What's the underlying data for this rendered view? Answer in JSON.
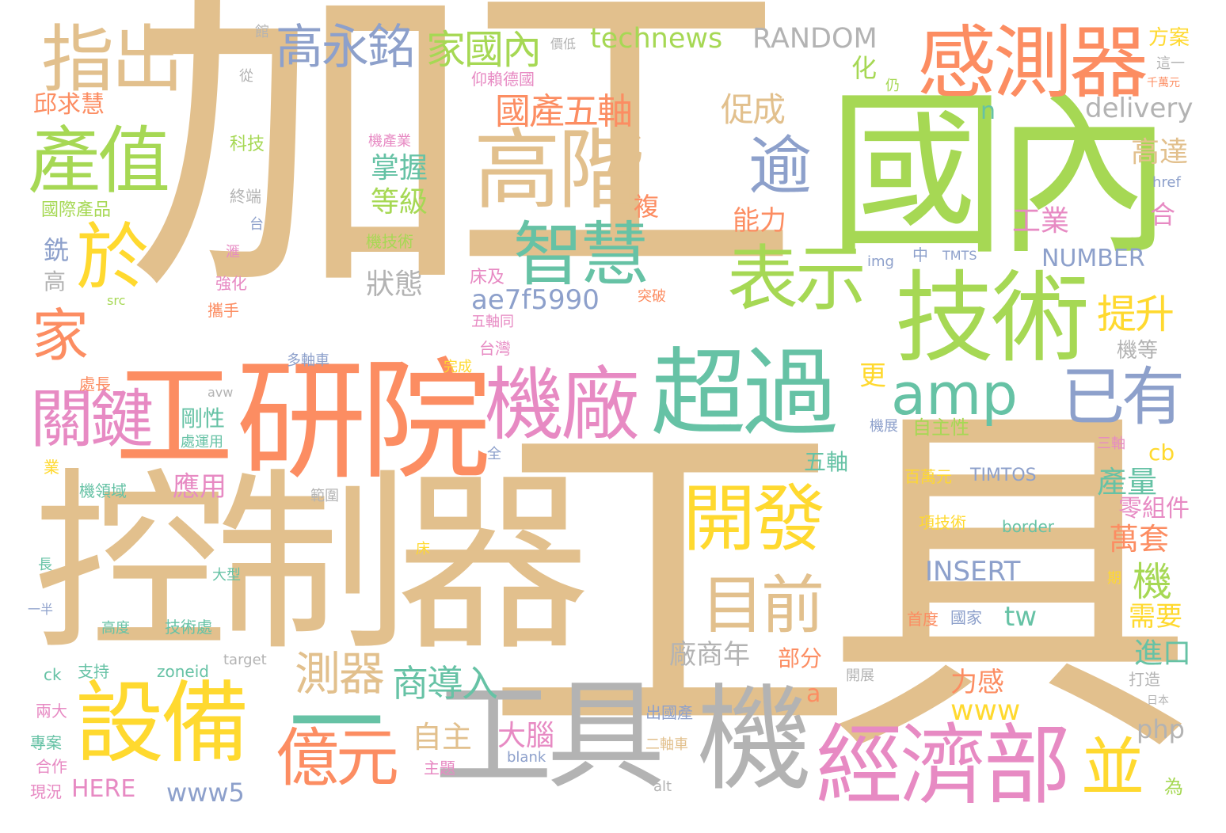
{
  "palette": {
    "tan": "#e2c08d",
    "green": "#a6d854",
    "orange": "#fc8d62",
    "teal": "#66c2a5",
    "yellow": "#ffd92f",
    "pink": "#e78ac3",
    "blue": "#8da0cb",
    "gray": "#b3b3b3"
  },
  "words": [
    {
      "text": "加工",
      "color": "tan"
    },
    {
      "text": "工具",
      "color": "tan"
    },
    {
      "text": "控制器",
      "color": "tan"
    },
    {
      "text": "國內",
      "color": "green"
    },
    {
      "text": "研院",
      "color": "orange"
    },
    {
      "text": "工",
      "color": "orange"
    },
    {
      "text": "超過",
      "color": "teal"
    },
    {
      "text": "機廠",
      "color": "pink"
    },
    {
      "text": "技術",
      "color": "green"
    },
    {
      "text": "高階",
      "color": "tan"
    },
    {
      "text": "感測器",
      "color": "orange"
    },
    {
      "text": "工具",
      "color": "gray"
    },
    {
      "text": "機",
      "color": "gray"
    },
    {
      "text": "經濟部",
      "color": "pink"
    },
    {
      "text": "設備",
      "color": "yellow"
    },
    {
      "text": "指出",
      "color": "tan"
    },
    {
      "text": "產值",
      "color": "green"
    },
    {
      "text": "智慧",
      "color": "teal"
    },
    {
      "text": "表示",
      "color": "green"
    },
    {
      "text": "開發",
      "color": "yellow"
    },
    {
      "text": "目前",
      "color": "tan"
    },
    {
      "text": "已有",
      "color": "blue"
    },
    {
      "text": "amp",
      "color": "teal"
    },
    {
      "text": "逾",
      "color": "blue"
    },
    {
      "text": "於",
      "color": "yellow"
    },
    {
      "text": "家",
      "color": "orange"
    },
    {
      "text": "關鍵",
      "color": "pink"
    },
    {
      "text": "億元",
      "color": "orange"
    },
    {
      "text": "並",
      "color": "yellow"
    },
    {
      "text": "一",
      "color": "teal"
    },
    {
      "text": "高永銘",
      "color": "blue"
    },
    {
      "text": "家國內",
      "color": "green"
    },
    {
      "text": "technews",
      "color": "green"
    },
    {
      "text": "RANDOM",
      "color": "gray"
    },
    {
      "text": "國產五軸",
      "color": "orange"
    },
    {
      "text": "促成",
      "color": "tan"
    },
    {
      "text": "測器",
      "color": "tan"
    },
    {
      "text": "商導入",
      "color": "teal"
    },
    {
      "text": "提升",
      "color": "yellow"
    },
    {
      "text": "delivery",
      "color": "gray"
    },
    {
      "text": "高達",
      "color": "tan"
    },
    {
      "text": "工業",
      "color": "pink"
    },
    {
      "text": "NUMBER",
      "color": "blue"
    },
    {
      "text": "ae7f5990",
      "color": "blue"
    },
    {
      "text": "能力",
      "color": "orange"
    },
    {
      "text": "產量",
      "color": "teal"
    },
    {
      "text": "萬套",
      "color": "orange"
    },
    {
      "text": "零組件",
      "color": "pink"
    },
    {
      "text": "機",
      "color": "green"
    },
    {
      "text": "需要",
      "color": "yellow"
    },
    {
      "text": "進口",
      "color": "teal"
    },
    {
      "text": "INSERT",
      "color": "blue"
    },
    {
      "text": "www",
      "color": "yellow"
    },
    {
      "text": "www5",
      "color": "blue"
    },
    {
      "text": "HERE",
      "color": "pink"
    },
    {
      "text": "大腦",
      "color": "pink"
    },
    {
      "text": "自主",
      "color": "tan"
    },
    {
      "text": "力感",
      "color": "orange"
    },
    {
      "text": "tw",
      "color": "teal"
    },
    {
      "text": "php",
      "color": "gray"
    },
    {
      "text": "cb",
      "color": "yellow"
    },
    {
      "text": "廠商年",
      "color": "gray"
    },
    {
      "text": "部分",
      "color": "orange"
    },
    {
      "text": "掌握",
      "color": "teal"
    },
    {
      "text": "等級",
      "color": "green"
    },
    {
      "text": "狀態",
      "color": "gray"
    },
    {
      "text": "邱求慧",
      "color": "orange"
    },
    {
      "text": "國際產品",
      "color": "green"
    },
    {
      "text": "應用",
      "color": "pink"
    },
    {
      "text": "剛性",
      "color": "teal"
    },
    {
      "text": "五軸",
      "color": "teal"
    },
    {
      "text": "自主性",
      "color": "green"
    },
    {
      "text": "百萬元",
      "color": "yellow"
    },
    {
      "text": "TIMTOS",
      "color": "blue"
    },
    {
      "text": "項技術",
      "color": "yellow"
    },
    {
      "text": "border",
      "color": "teal"
    },
    {
      "text": "首度",
      "color": "orange"
    },
    {
      "text": "國家",
      "color": "blue"
    },
    {
      "text": "更",
      "color": "yellow"
    },
    {
      "text": "a",
      "color": "orange"
    },
    {
      "text": "n",
      "color": "teal"
    },
    {
      "text": "方案",
      "color": "yellow"
    },
    {
      "text": "複",
      "color": "orange"
    },
    {
      "text": "合",
      "color": "pink"
    },
    {
      "text": "化",
      "color": "green"
    },
    {
      "text": "銑",
      "color": "blue"
    },
    {
      "text": "高",
      "color": "gray"
    },
    {
      "text": "床及",
      "color": "pink"
    },
    {
      "text": "科技",
      "color": "green"
    },
    {
      "text": "終端",
      "color": "gray"
    },
    {
      "text": "機產業",
      "color": "pink"
    },
    {
      "text": "機技術",
      "color": "green"
    },
    {
      "text": "仰賴德國",
      "color": "pink"
    },
    {
      "text": "技術處",
      "color": "teal"
    },
    {
      "text": "支持",
      "color": "teal"
    },
    {
      "text": "zoneid",
      "color": "teal"
    },
    {
      "text": "target",
      "color": "gray"
    },
    {
      "text": "ck",
      "color": "teal"
    },
    {
      "text": "兩大",
      "color": "pink"
    },
    {
      "text": "專案",
      "color": "teal"
    },
    {
      "text": "合作",
      "color": "pink"
    },
    {
      "text": "現況",
      "color": "pink"
    },
    {
      "text": "大型",
      "color": "teal"
    },
    {
      "text": "高度",
      "color": "teal"
    },
    {
      "text": "範圍",
      "color": "gray"
    },
    {
      "text": "機領域",
      "color": "teal"
    },
    {
      "text": "出國產",
      "color": "blue"
    },
    {
      "text": "主題",
      "color": "pink"
    },
    {
      "text": "二軸車",
      "color": "tan"
    },
    {
      "text": "blank",
      "color": "blue"
    },
    {
      "text": "alt",
      "color": "gray"
    },
    {
      "text": "台灣",
      "color": "pink"
    },
    {
      "text": "五軸同",
      "color": "pink"
    },
    {
      "text": "突破",
      "color": "orange"
    },
    {
      "text": "完成",
      "color": "yellow"
    },
    {
      "text": "多軸車",
      "color": "blue"
    },
    {
      "text": "處長",
      "color": "orange"
    },
    {
      "text": "強化",
      "color": "pink"
    },
    {
      "text": "攜手",
      "color": "orange"
    },
    {
      "text": "機等",
      "color": "gray"
    },
    {
      "text": "為",
      "color": "green"
    },
    {
      "text": "打造",
      "color": "gray"
    },
    {
      "text": "日本",
      "color": "gray"
    },
    {
      "text": "三軸",
      "color": "pink"
    },
    {
      "text": "機展",
      "color": "blue"
    },
    {
      "text": "開展",
      "color": "gray"
    },
    {
      "text": "中",
      "color": "blue"
    },
    {
      "text": "TMTS",
      "color": "blue"
    },
    {
      "text": "img",
      "color": "blue"
    },
    {
      "text": "href",
      "color": "blue"
    },
    {
      "text": "src",
      "color": "green"
    },
    {
      "text": "avw",
      "color": "gray"
    },
    {
      "text": "全",
      "color": "blue"
    },
    {
      "text": "長",
      "color": "teal"
    },
    {
      "text": "一半",
      "color": "blue"
    },
    {
      "text": "館",
      "color": "gray"
    },
    {
      "text": "從",
      "color": "gray"
    },
    {
      "text": "仍",
      "color": "green"
    },
    {
      "text": "這一",
      "color": "gray"
    },
    {
      "text": "千萬元",
      "color": "orange"
    },
    {
      "text": "價低",
      "color": "gray"
    },
    {
      "text": "業",
      "color": "yellow"
    },
    {
      "text": "台",
      "color": "blue"
    },
    {
      "text": "滙",
      "color": "pink"
    },
    {
      "text": "處運用",
      "color": "teal"
    },
    {
      "text": "期",
      "color": "yellow"
    },
    {
      "text": "床",
      "color": "yellow"
    }
  ]
}
